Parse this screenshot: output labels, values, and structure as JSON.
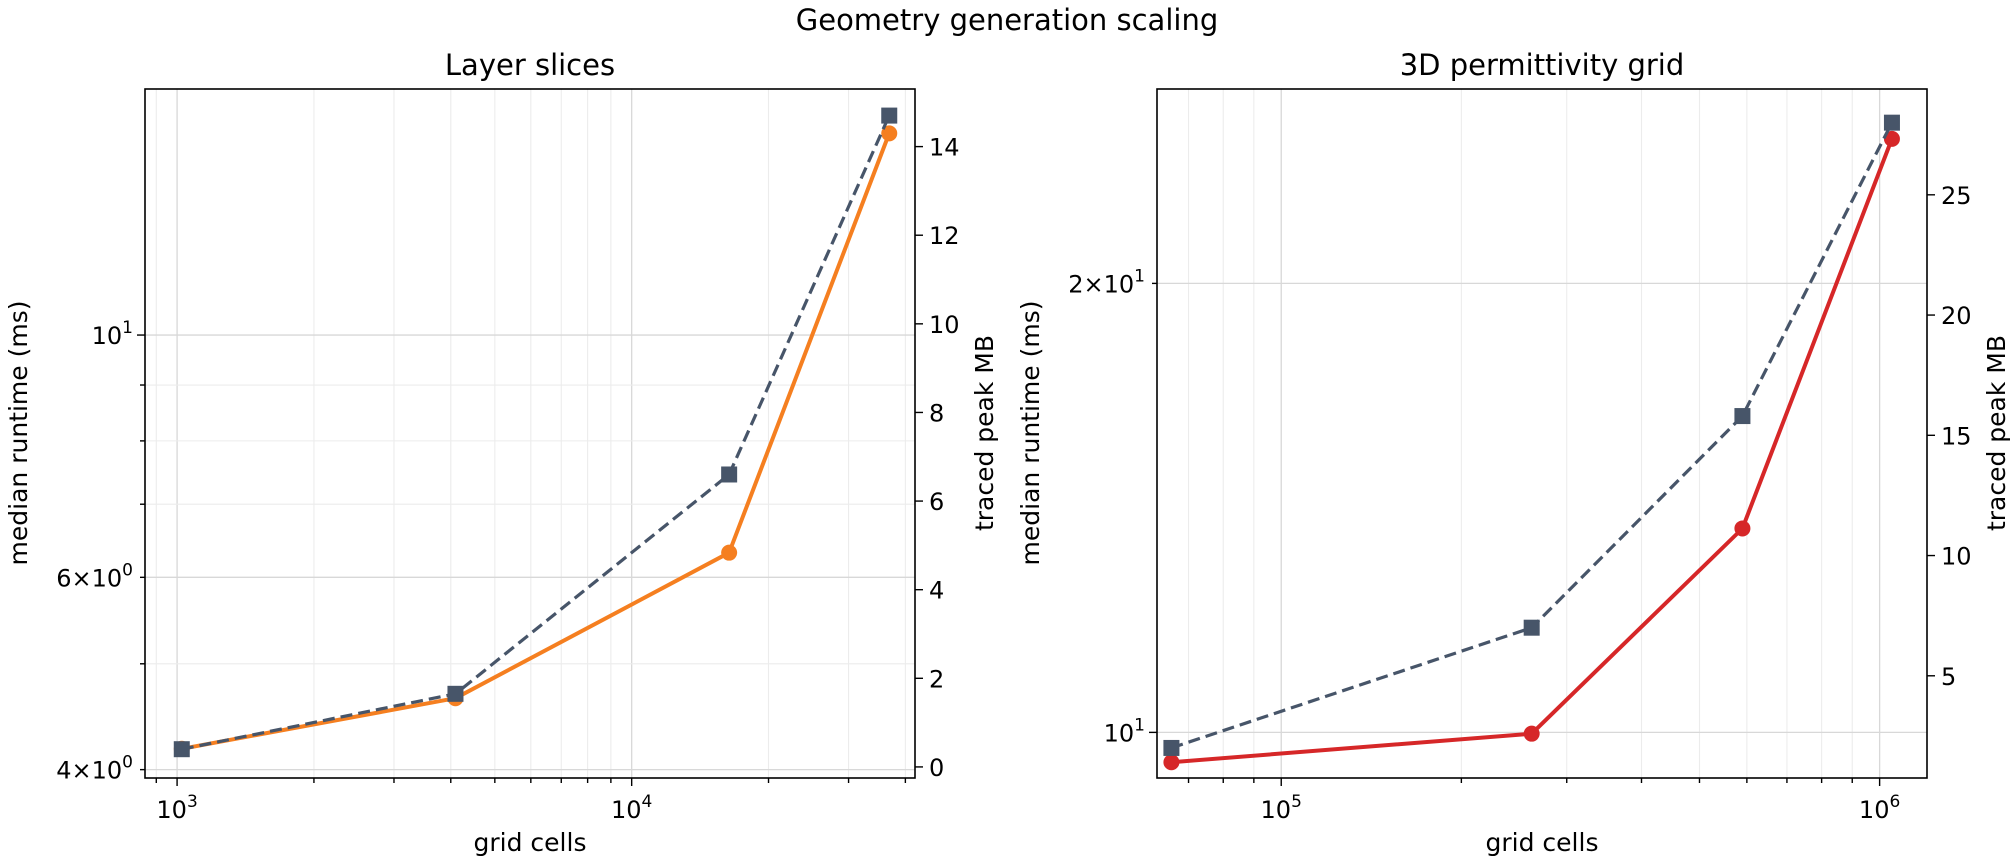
{
  "figure": {
    "suptitle": "Geometry generation scaling"
  },
  "chart_data": [
    {
      "type": "line",
      "title": "Layer slices",
      "xlabel": "grid cells",
      "ylabel": "median runtime (ms)",
      "ylabel_right": "traced peak MB",
      "x_scale": "log",
      "y_scale": "log",
      "y_right_scale": "linear",
      "xlim": [
        850,
        42000
      ],
      "ylim": [
        3.93,
        16.8
      ],
      "y_right_lim": [
        -0.25,
        15.3
      ],
      "x_ticks": [
        {
          "value": 1000,
          "base": "10",
          "exp": "3"
        },
        {
          "value": 10000,
          "base": "10",
          "exp": "4"
        }
      ],
      "y_ticks": [
        {
          "value": 4,
          "base": "4×10",
          "exp": "0"
        },
        {
          "value": 6,
          "base": "6×10",
          "exp": "0"
        },
        {
          "value": 10,
          "base": "10",
          "exp": "1"
        }
      ],
      "y_right_ticks": [
        "0",
        "2",
        "4",
        "6",
        "8",
        "10",
        "12",
        "14"
      ],
      "grid": true,
      "series": [
        {
          "axis": "left",
          "color": "#f57f20",
          "style": "solid",
          "marker": "circle",
          "x": [
            1024,
            4096,
            16384,
            36864
          ],
          "y": [
            4.18,
            4.65,
            6.32,
            15.3
          ]
        },
        {
          "axis": "right",
          "color": "#475569",
          "style": "dashed",
          "marker": "square",
          "x": [
            1024,
            4096,
            16384,
            36864
          ],
          "y": [
            0.4,
            1.65,
            6.6,
            14.7
          ]
        }
      ]
    },
    {
      "type": "line",
      "title": "3D permittivity grid",
      "xlabel": "grid cells",
      "ylabel": "median runtime (ms)",
      "ylabel_right": "traced peak MB",
      "x_scale": "log",
      "y_scale": "log",
      "y_right_scale": "linear",
      "xlim": [
        62000,
        1200000
      ],
      "ylim": [
        9.32,
        27.0
      ],
      "y_right_lim": [
        0.75,
        29.4
      ],
      "x_ticks": [
        {
          "value": 100000,
          "base": "10",
          "exp": "5"
        },
        {
          "value": 1000000,
          "base": "10",
          "exp": "6"
        }
      ],
      "y_ticks": [
        {
          "value": 10,
          "base": "10",
          "exp": "1"
        },
        {
          "value": 20,
          "base": "2×10",
          "exp": "1"
        }
      ],
      "y_right_ticks": [
        "5",
        "10",
        "15",
        "20",
        "25"
      ],
      "grid": true,
      "series": [
        {
          "axis": "left",
          "color": "#d62728",
          "style": "solid",
          "marker": "circle",
          "x": [
            65536,
            262144,
            589824,
            1048576
          ],
          "y": [
            9.55,
            9.98,
            13.7,
            25.0
          ]
        },
        {
          "axis": "right",
          "color": "#475569",
          "style": "dashed",
          "marker": "square",
          "x": [
            65536,
            262144,
            589824,
            1048576
          ],
          "y": [
            2.0,
            7.0,
            15.8,
            28.0
          ]
        }
      ]
    }
  ]
}
